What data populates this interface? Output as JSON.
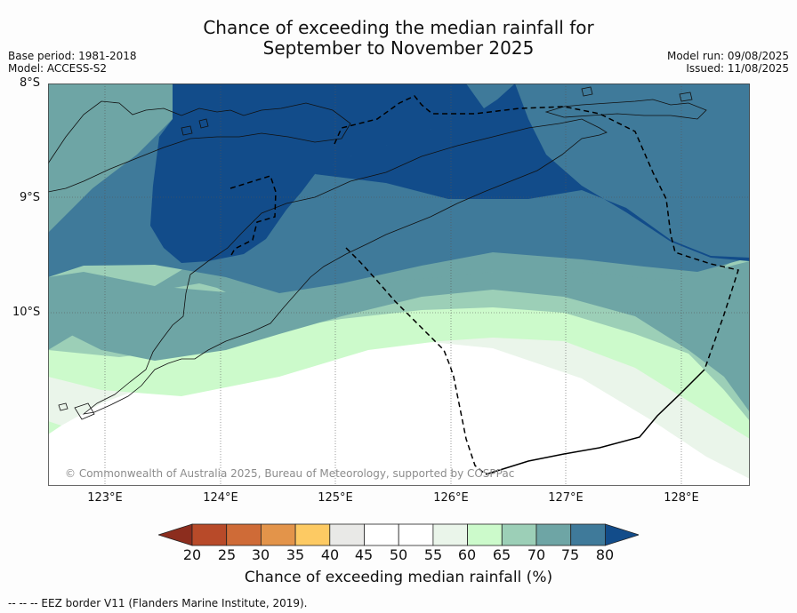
{
  "title": {
    "line1": "Chance of exceeding the median rainfall for",
    "line2": "September to November 2025"
  },
  "meta": {
    "base_period": "Base period: 1981-2018",
    "model": "Model: ACCESS-S2",
    "model_run": "Model run: 09/08/2025",
    "issued": "Issued: 11/08/2025"
  },
  "axes": {
    "lat_labels": [
      "8°S",
      "9°S",
      "10°S"
    ],
    "lon_labels": [
      "123°E",
      "124°E",
      "125°E",
      "126°E",
      "127°E",
      "128°E"
    ]
  },
  "copyright": "© Commonwealth of Australia 2025, Bureau of Meteorology, supported by COSPPac",
  "colorbar": {
    "ticks": [
      "20",
      "25",
      "30",
      "35",
      "40",
      "45",
      "50",
      "55",
      "60",
      "65",
      "70",
      "75",
      "80"
    ],
    "colors": [
      "#8c2d1e",
      "#b84a29",
      "#cf6b37",
      "#e3944a",
      "#fdca63",
      "#e9e9e7",
      "#ffffff",
      "#ffffff",
      "#eaf5ea",
      "#ccfacb",
      "#9ccfb7",
      "#6ea5a5",
      "#3f7a9a",
      "#124c8a"
    ],
    "label": "Chance of exceeding median rainfall (%)"
  },
  "legend_note": "--  --  -- EEZ border V11 (Flanders Marine Institute, 2019)."
}
